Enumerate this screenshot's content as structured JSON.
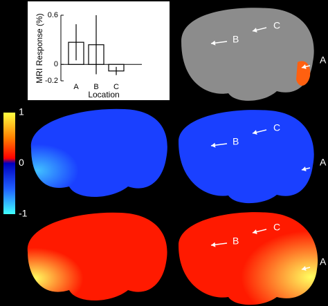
{
  "chart_data": [
    {
      "type": "bar",
      "ylabel": "MRI Response (%)",
      "xlabel": "Location",
      "categories": [
        "A",
        "B",
        "C"
      ],
      "values": [
        0.27,
        0.24,
        -0.08
      ],
      "errors": [
        0.22,
        0.36,
        0.05
      ],
      "color": "#ffffff",
      "ylim": [
        -0.2,
        0.6
      ],
      "yticks": [
        -0.2,
        0,
        0.6
      ]
    },
    {
      "type": "colorbar",
      "ylim": [
        -1,
        1
      ],
      "yticks": [
        -1,
        0,
        1
      ]
    }
  ],
  "brain_annotations": [
    "A",
    "B",
    "C"
  ]
}
